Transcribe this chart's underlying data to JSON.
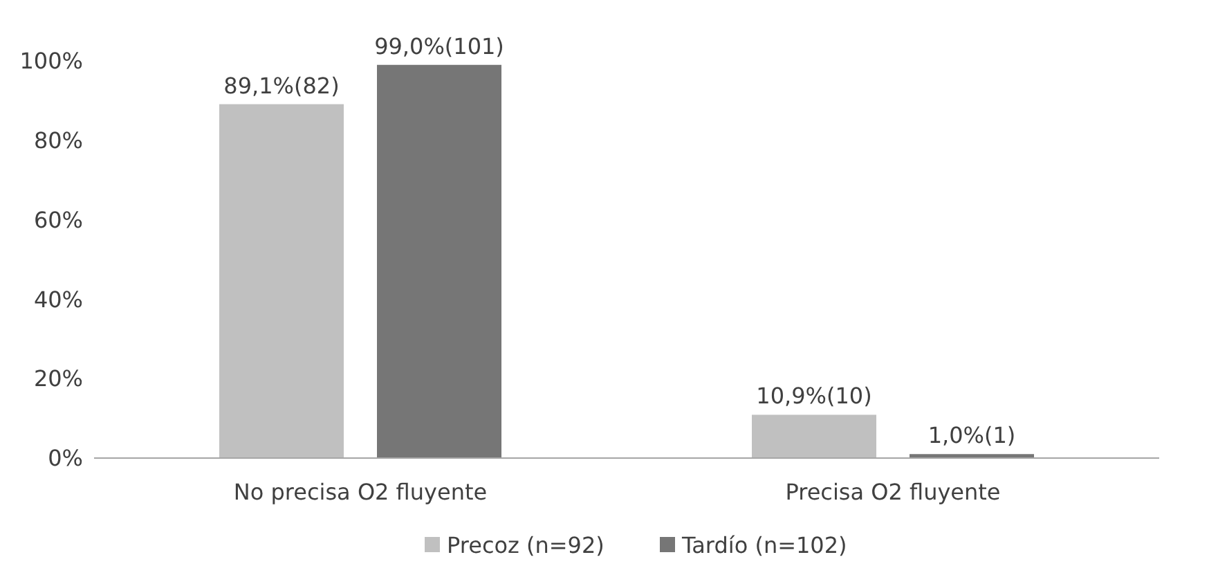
{
  "chart_data": {
    "type": "bar",
    "categories": [
      "No precisa O2 fluyente",
      "Precisa O2 fluyente"
    ],
    "series": [
      {
        "name": "Precoz (n=92)",
        "color": "#c0c0c0",
        "values": [
          89.1,
          10.9
        ],
        "value_labels": [
          "89,1%(82)",
          "10,9%(10)"
        ]
      },
      {
        "name": "Tardío (n=102)",
        "color": "#767676",
        "values": [
          99.0,
          1.0
        ],
        "value_labels": [
          "99,0%(101)",
          "1,0%(1)"
        ]
      }
    ],
    "ylim": [
      0,
      100
    ],
    "yticks": [
      {
        "value": 0,
        "label": "0%"
      },
      {
        "value": 20,
        "label": "20%"
      },
      {
        "value": 40,
        "label": "40%"
      },
      {
        "value": 60,
        "label": "60%"
      },
      {
        "value": 80,
        "label": "80%"
      },
      {
        "value": 100,
        "label": "100%"
      }
    ],
    "grid": false,
    "legend": "bottom"
  }
}
